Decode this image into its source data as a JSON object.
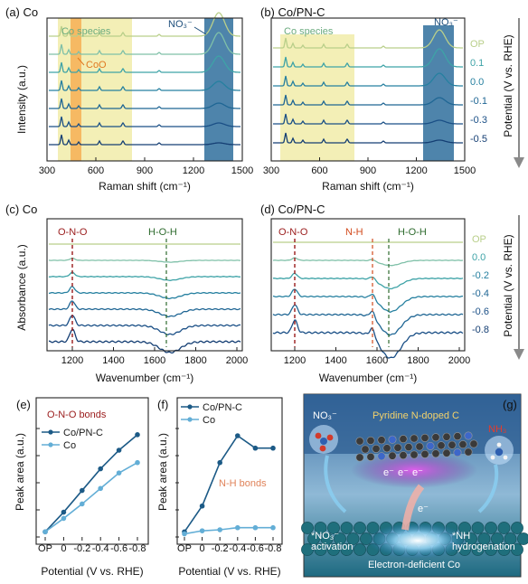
{
  "palette": {
    "levels": [
      "#b9cf8a",
      "#7fc0a8",
      "#3ea3a7",
      "#2680a0",
      "#1f6694",
      "#1a4f86",
      "#143e73"
    ],
    "spec_highlight": "#f1eca9",
    "coo_highlight": "#f6b25a",
    "no3_highlight": "#2f6e9c",
    "red": "#9a1b1b",
    "green": "#2e6b2e",
    "orange": "#d24a1c",
    "dark_series": "#1c5a86",
    "light_series": "#63aed6"
  },
  "panels": {
    "a": {
      "label": "(a) Co",
      "ylabel": "Intensity (a.u.)",
      "xlabel": "Raman shift (cm⁻¹)",
      "xticks": [
        "300",
        "600",
        "900",
        "1200",
        "1500"
      ],
      "species_label": "Co species",
      "coo_label": "CoO",
      "no3_label": "NO₃⁻"
    },
    "b": {
      "label": "(b) Co/PN-C",
      "xlabel": "Raman shift (cm⁻¹)",
      "xticks": [
        "300",
        "600",
        "900",
        "1200",
        "1500"
      ],
      "species_label": "Co species",
      "no3_label": "NO₃⁻",
      "potentials": [
        "OP",
        "0.1",
        "0.0",
        "-0.1",
        "-0.3",
        "-0.5"
      ],
      "potential_axis": "Potential (V vs. RHE)"
    },
    "c": {
      "label": "(c) Co",
      "ylabel": "Absorbance (a.u.)",
      "xlabel": "Wavenumber (cm⁻¹)",
      "xticks": [
        "1200",
        "1400",
        "1600",
        "1800",
        "2000"
      ],
      "ono_label": "O-N-O",
      "hoh_label": "H-O-H"
    },
    "d": {
      "label": "(d) Co/PN-C",
      "xlabel": "Wavenumber (cm⁻¹)",
      "xticks": [
        "1200",
        "1400",
        "1600",
        "1800",
        "2000"
      ],
      "ono_label": "O-N-O",
      "nh_label": "N-H",
      "hoh_label": "H-O-H",
      "potentials": [
        "OP",
        "0.0",
        "-0.2",
        "-0.4",
        "-0.6",
        "-0.8"
      ],
      "potential_axis": "Potential (V vs. RHE)"
    },
    "e": {
      "label": "(e)",
      "annotation": "O-N-O bonds",
      "ylabel": "Peak area (a.u.)",
      "xlabel": "Potential (V vs. RHE)",
      "xticks": [
        "OP",
        "0",
        "-0.2",
        "-0.4",
        "-0.6",
        "-0.8"
      ]
    },
    "f": {
      "label": "(f)",
      "annotation": "N-H bonds",
      "ylabel": "Peak area (a.u.)",
      "xlabel": "Potential (V vs. RHE)",
      "xticks": [
        "OP",
        "0",
        "-0.2",
        "-0.4",
        "-0.6",
        "-0.8"
      ]
    },
    "g": {
      "label": "(g)",
      "title": "Pyridine N-doped C",
      "no3_label": "NO₃⁻",
      "nh3_label": "NH₃",
      "activation_label": "*NO₃⁻\nactivation",
      "hydrogenation_label": "*NH\nhydrogenation",
      "electron_label": "e⁻",
      "bottom_label": "Electron-deficient Co"
    }
  },
  "chart_data": [
    {
      "type": "line",
      "panel": "e",
      "categories": [
        "OP",
        "0",
        "-0.2",
        "-0.4",
        "-0.6",
        "-0.8"
      ],
      "series": [
        {
          "name": "Co/PN-C",
          "values": [
            0.05,
            0.24,
            0.45,
            0.66,
            0.84,
            0.99
          ]
        },
        {
          "name": "Co",
          "values": [
            0.05,
            0.18,
            0.32,
            0.47,
            0.62,
            0.72
          ]
        }
      ],
      "ylim": [
        0,
        1.05
      ]
    },
    {
      "type": "line",
      "panel": "f",
      "categories": [
        "OP",
        "0",
        "-0.2",
        "-0.4",
        "-0.6",
        "-0.8"
      ],
      "series": [
        {
          "name": "Co/PN-C",
          "values": [
            0.05,
            0.3,
            0.72,
            0.98,
            0.86,
            0.86
          ]
        },
        {
          "name": "Co",
          "values": [
            0.03,
            0.06,
            0.07,
            0.09,
            0.09,
            0.09
          ]
        }
      ],
      "ylim": [
        0,
        1.05
      ]
    }
  ]
}
